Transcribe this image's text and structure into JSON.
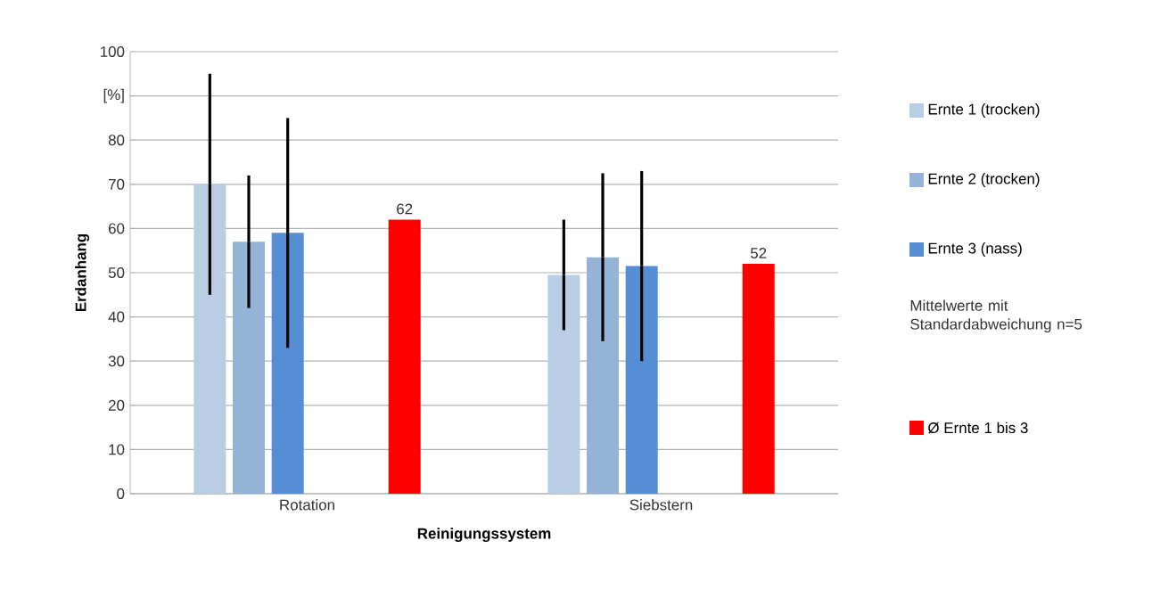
{
  "chart_data": {
    "type": "bar",
    "xlabel": "Reinigungssystem",
    "ylabel": "Erdanhang",
    "categories": [
      "Rotation",
      "Siebstern"
    ],
    "series": [
      {
        "name": "Ernte 1 (trocken)",
        "color": "#b9cde5",
        "values": [
          70,
          49.5
        ],
        "errors": [
          25,
          12.5
        ]
      },
      {
        "name": "Ernte 2 (trocken)",
        "color": "#95b3d7",
        "values": [
          57,
          53.5
        ],
        "errors": [
          15,
          19
        ]
      },
      {
        "name": "Ernte 3 (nass)",
        "color": "#558ed5",
        "values": [
          59,
          51.5
        ],
        "errors": [
          26,
          21.5
        ]
      },
      {
        "name": "Ø Ernte 1 bis 3",
        "color": "#ff0000",
        "values": [
          62,
          52
        ],
        "value_labels": [
          "62",
          "52"
        ]
      }
    ],
    "ylim": [
      0,
      100
    ],
    "yticks": [
      0,
      10,
      20,
      30,
      40,
      50,
      60,
      70,
      80,
      {
        "value": 90,
        "label": "[%]"
      },
      100
    ],
    "grid": "y",
    "legend": "right",
    "annotations": [
      "Mittelwerte mit Standardabweichung n=5"
    ]
  }
}
